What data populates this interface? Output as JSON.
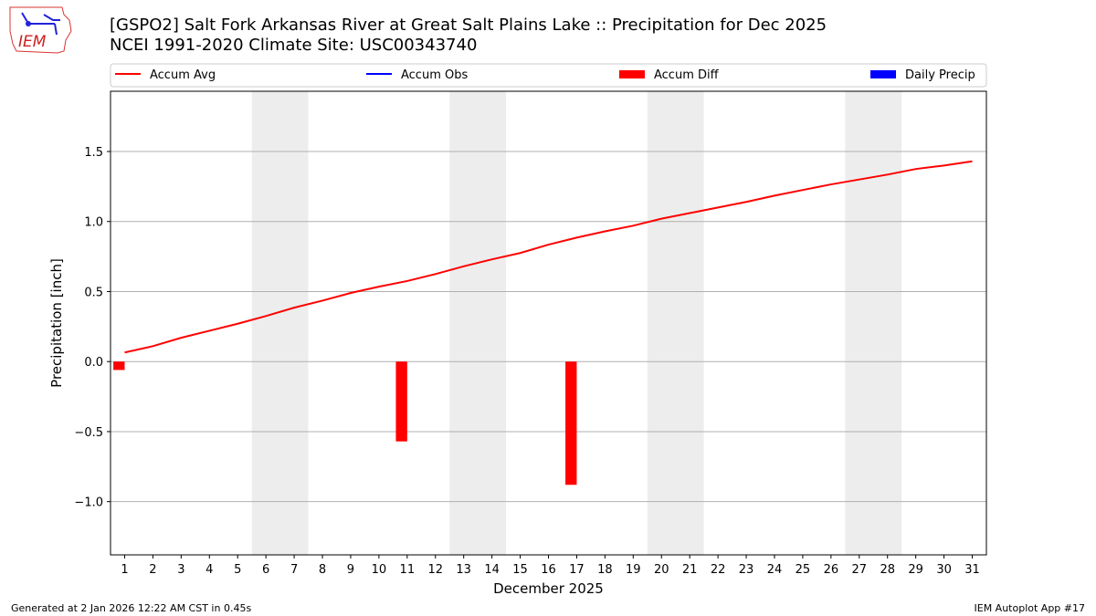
{
  "header": {
    "title_line1": "[GSPO2] Salt Fork Arkansas River at Great Salt Plains Lake :: Precipitation for Dec 2025",
    "title_line2": "NCEI 1991-2020 Climate Site: USC00343740",
    "logo_text": "IEM"
  },
  "footer": {
    "left": "Generated at 2 Jan 2026 12:22 AM CST in 0.45s",
    "right": "IEM Autoplot App #17"
  },
  "chart_data": {
    "type": "line",
    "xlabel": "December 2025",
    "ylabel": "Precipitation [inch]",
    "xlim": [
      0.5,
      31.5
    ],
    "ylim": [
      -1.38,
      1.93
    ],
    "yticks": [
      -1.0,
      -0.5,
      0.0,
      0.5,
      1.0,
      1.5
    ],
    "ytick_labels": [
      "−1.0",
      "−0.5",
      "0.0",
      "0.5",
      "1.0",
      "1.5"
    ],
    "grid": "y",
    "legend": {
      "placement": "top",
      "entries": [
        {
          "label": "Accum Avg",
          "kind": "line",
          "color": "#ff0000"
        },
        {
          "label": "Accum Obs",
          "kind": "line",
          "color": "#0000ff"
        },
        {
          "label": "Accum Diff",
          "kind": "bar",
          "color": "#ff0000"
        },
        {
          "label": "Daily Precip",
          "kind": "bar",
          "color": "#0000ff"
        }
      ]
    },
    "weekend_shading": [
      [
        5.5,
        7.5
      ],
      [
        12.5,
        14.5
      ],
      [
        19.5,
        21.5
      ],
      [
        26.5,
        28.5
      ]
    ],
    "x": [
      1,
      2,
      3,
      4,
      5,
      6,
      7,
      8,
      9,
      10,
      11,
      12,
      13,
      14,
      15,
      16,
      17,
      18,
      19,
      20,
      21,
      22,
      23,
      24,
      25,
      26,
      27,
      28,
      29,
      30,
      31
    ],
    "series": [
      {
        "name": "Accum Avg",
        "color": "#ff0000",
        "values": [
          0.065,
          0.11,
          0.17,
          0.22,
          0.27,
          0.325,
          0.385,
          0.435,
          0.49,
          0.535,
          0.575,
          0.625,
          0.68,
          0.73,
          0.775,
          0.835,
          0.885,
          0.93,
          0.97,
          1.02,
          1.06,
          1.1,
          1.14,
          1.185,
          1.225,
          1.265,
          1.3,
          1.335,
          1.375,
          1.4,
          1.43
        ]
      },
      {
        "name": "Accum Diff",
        "color": "#ff0000",
        "type": "bar",
        "x": [
          1,
          11,
          17
        ],
        "values": [
          -0.06,
          -0.57,
          -0.88
        ]
      }
    ]
  }
}
